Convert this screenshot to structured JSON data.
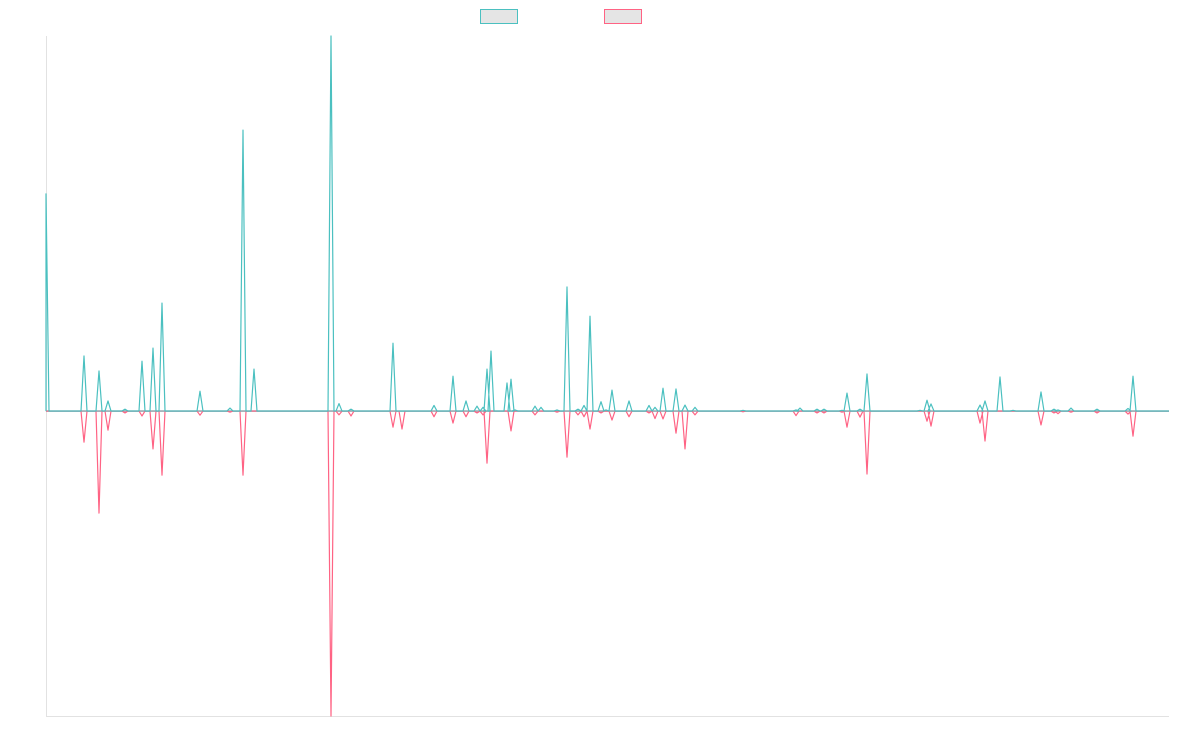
{
  "colors": {
    "series_a": "#4bc0c0",
    "series_b": "#ff6384",
    "baseline": "#9aa8b0",
    "axis": "#e2e2e2"
  },
  "chart_data": {
    "type": "line",
    "title": "",
    "xlabel": "",
    "ylabel": "",
    "xlim": [
      0,
      1123
    ],
    "ylim": [
      -81.3,
      100
    ],
    "grid": false,
    "legend": {
      "placement": "top-center",
      "entries": [
        "",
        ""
      ]
    },
    "spikes": [
      [
        0,
        57.9,
        0
      ],
      [
        38,
        14.7,
        -8.3
      ],
      [
        53,
        10.7,
        -27.2
      ],
      [
        62,
        2.7,
        -5.1
      ],
      [
        79,
        0.5,
        -0.5
      ],
      [
        96,
        13.3,
        -1.3
      ],
      [
        107,
        16.8,
        -10.1
      ],
      [
        116,
        28.8,
        -17.1
      ],
      [
        154,
        5.3,
        -1.1
      ],
      [
        184,
        0.8,
        -0.3
      ],
      [
        197,
        74.9,
        -17.1
      ],
      [
        208,
        11.2,
        0
      ],
      [
        285,
        100,
        -81.3
      ],
      [
        293,
        2,
        -1
      ],
      [
        305,
        0.5,
        -1.3
      ],
      [
        347,
        18.1,
        -4.3
      ],
      [
        356,
        0,
        -4.8
      ],
      [
        388,
        1.5,
        -1.5
      ],
      [
        407,
        9.3,
        -3.2
      ],
      [
        420,
        2.7,
        -1.5
      ],
      [
        431,
        1.3,
        -0.5
      ],
      [
        437,
        1,
        -1
      ],
      [
        441,
        11.2,
        -13.9
      ],
      [
        445,
        16,
        0
      ],
      [
        461,
        7.5,
        0
      ],
      [
        465,
        8.5,
        -5.3
      ],
      [
        469,
        0.3,
        0
      ],
      [
        489,
        1.3,
        -1
      ],
      [
        495,
        1,
        0
      ],
      [
        511,
        0.3,
        -0.3
      ],
      [
        521,
        33.1,
        -12.3
      ],
      [
        532,
        0.5,
        -1
      ],
      [
        538,
        1.5,
        -1.5
      ],
      [
        544,
        25.3,
        -4.8
      ],
      [
        555,
        2.5,
        -0.5
      ],
      [
        560,
        0.3,
        0
      ],
      [
        566,
        5.6,
        -2.4
      ],
      [
        583,
        2.7,
        -1.5
      ],
      [
        603,
        1.5,
        -0.5
      ],
      [
        609,
        1,
        -2
      ],
      [
        617,
        6.1,
        -2.1
      ],
      [
        630,
        5.9,
        -5.9
      ],
      [
        639,
        1.6,
        -10.1
      ],
      [
        649,
        1,
        -1
      ],
      [
        697,
        0.2,
        -0.2
      ],
      [
        750,
        0.3,
        -1.2
      ],
      [
        754,
        0.8,
        0
      ],
      [
        771,
        0.5,
        -0.5
      ],
      [
        778,
        0.5,
        -0.5
      ],
      [
        796,
        0.2,
        -0.3
      ],
      [
        801,
        4.8,
        -4.3
      ],
      [
        814,
        0.5,
        -1.6
      ],
      [
        821,
        9.9,
        -16.8
      ],
      [
        874,
        0.2,
        0
      ],
      [
        881,
        2.9,
        -2.7
      ],
      [
        885,
        1.9,
        -4
      ],
      [
        934,
        1.6,
        -3.2
      ],
      [
        939,
        2.7,
        -8
      ],
      [
        954,
        9.1,
        0
      ],
      [
        967,
        0.2,
        0
      ],
      [
        995,
        5.1,
        -3.7
      ],
      [
        1008,
        0.5,
        -0.5
      ],
      [
        1012,
        0.3,
        -0.7
      ],
      [
        1025,
        0.8,
        -0.3
      ],
      [
        1051,
        0.5,
        -0.5
      ],
      [
        1082,
        0.7,
        -0.8
      ],
      [
        1087,
        9.3,
        -6.7
      ]
    ]
  }
}
